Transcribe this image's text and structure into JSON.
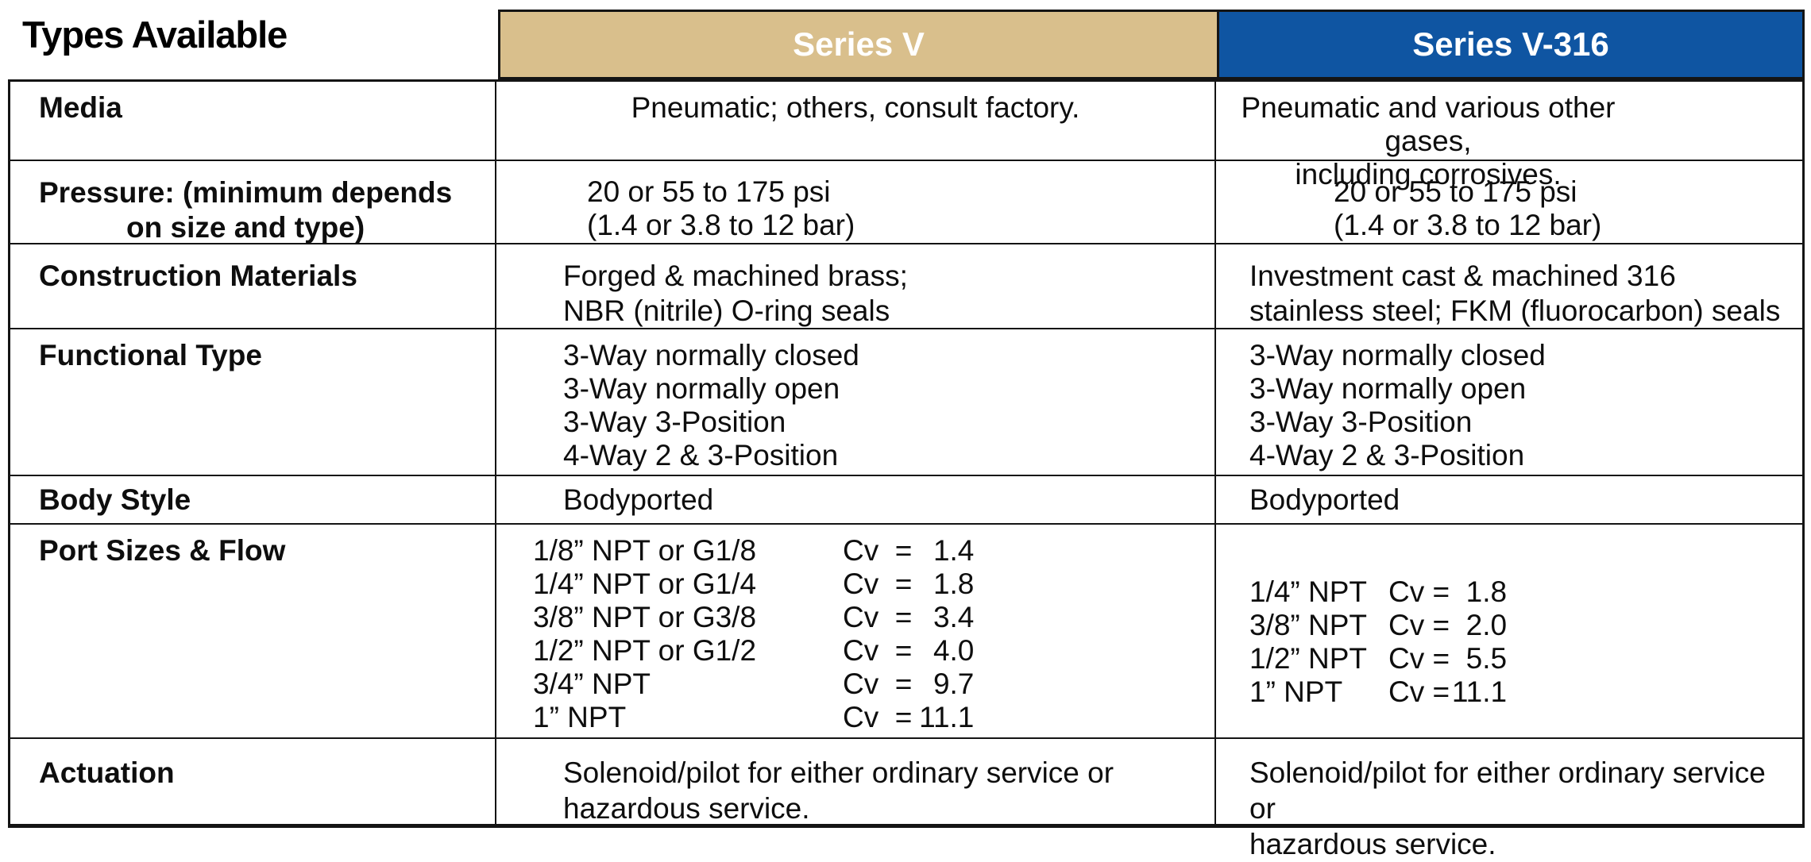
{
  "title": "Types Available",
  "colors": {
    "series_v_header_bg": "#d9bf8c",
    "series_v316_header_bg": "#0f55a2",
    "header_text": "#ffffff",
    "border": "#141414"
  },
  "columns": {
    "series_v": {
      "label": "Series V"
    },
    "series_v316": {
      "label": "Series V-316"
    }
  },
  "rows": {
    "media": {
      "label": "Media",
      "v": "Pneumatic; others, consult factory.",
      "v316_lines": [
        "Pneumatic and various other gases,",
        "including corrosives."
      ]
    },
    "pressure": {
      "label_lines": [
        "Pressure: (minimum depends",
        "on size and type)"
      ],
      "v_lines": [
        "20 or 55 to 175 psi",
        "(1.4 or 3.8 to 12 bar)"
      ],
      "v316_lines": [
        "20 or 55 to 175 psi",
        "(1.4 or 3.8 to 12 bar)"
      ]
    },
    "construction": {
      "label": "Construction Materials",
      "v_lines": [
        "Forged & machined brass;",
        "NBR (nitrile) O-ring seals"
      ],
      "v316_lines": [
        "Investment cast & machined 316",
        "stainless steel; FKM (fluorocarbon) seals"
      ]
    },
    "functional": {
      "label": "Functional Type",
      "v": [
        "3-Way normally closed",
        "3-Way normally open",
        "3-Way 3-Position",
        "4-Way 2 & 3-Position"
      ],
      "v316": [
        "3-Way normally closed",
        "3-Way normally open",
        "3-Way 3-Position",
        "4-Way 2 & 3-Position"
      ]
    },
    "body_style": {
      "label": "Body Style",
      "v": "Bodyported",
      "v316": "Bodyported"
    },
    "port_sizes": {
      "label": "Port Sizes & Flow",
      "v": [
        {
          "port": "1/8” NPT or G1/8",
          "cv": "Cv  =",
          "val": "1.4"
        },
        {
          "port": "1/4” NPT or G1/4",
          "cv": "Cv  =",
          "val": "1.8"
        },
        {
          "port": "3/8” NPT or G3/8",
          "cv": "Cv  =",
          "val": "3.4"
        },
        {
          "port": "1/2” NPT or G1/2",
          "cv": "Cv  =",
          "val": "4.0"
        },
        {
          "port": "3/4” NPT",
          "cv": "Cv  =",
          "val": "9.7"
        },
        {
          "port": "1” NPT",
          "cv": "Cv  =",
          "val": "11.1"
        }
      ],
      "v316": [
        {
          "port": "1/4” NPT",
          "cv": "Cv =",
          "val": "1.8"
        },
        {
          "port": "3/8” NPT",
          "cv": "Cv =",
          "val": "2.0"
        },
        {
          "port": "1/2” NPT",
          "cv": "Cv =",
          "val": "5.5"
        },
        {
          "port": "1” NPT",
          "cv": "Cv =",
          "val": "11.1"
        }
      ]
    },
    "actuation": {
      "label": "Actuation",
      "v_lines": [
        "Solenoid/pilot for either ordinary service or",
        "hazardous service."
      ],
      "v316_lines": [
        "Solenoid/pilot for either ordinary service or",
        "hazardous service."
      ]
    }
  }
}
